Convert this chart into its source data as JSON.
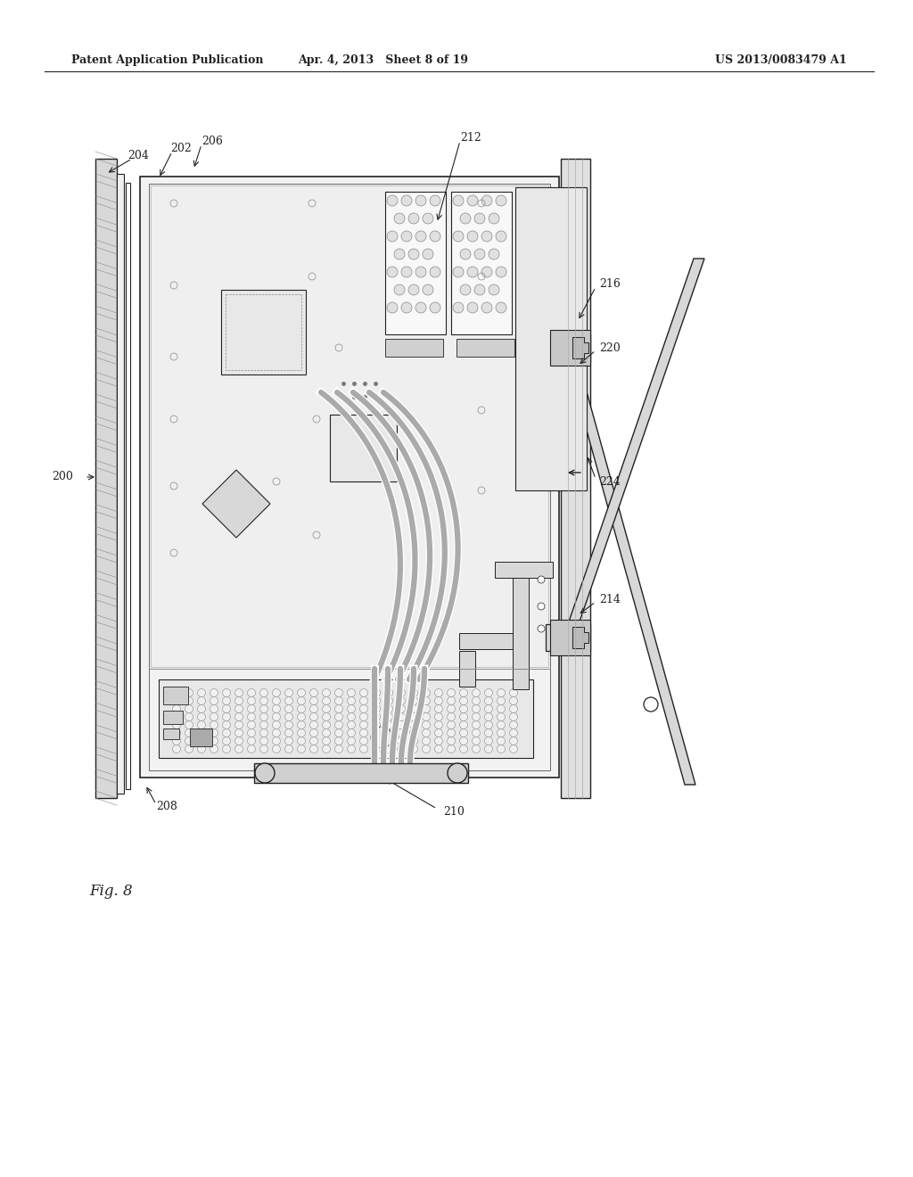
{
  "header_left": "Patent Application Publication",
  "header_center": "Apr. 4, 2013   Sheet 8 of 19",
  "header_right": "US 2013/0083479 A1",
  "figure_label": "Fig. 8",
  "bg_color": "#ffffff",
  "lc": "#222222",
  "gray_light": "#e8e8e8",
  "gray_med": "#cccccc",
  "gray_dark": "#999999",
  "board_bg": "#f0f0f0"
}
